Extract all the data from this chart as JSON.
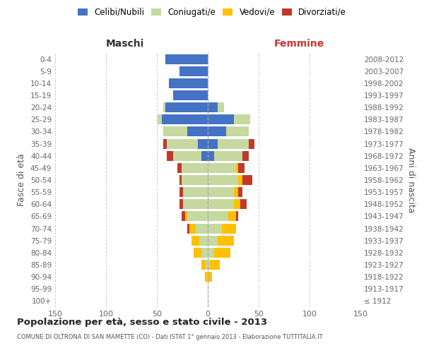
{
  "age_groups": [
    "100+",
    "95-99",
    "90-94",
    "85-89",
    "80-84",
    "75-79",
    "70-74",
    "65-69",
    "60-64",
    "55-59",
    "50-54",
    "45-49",
    "40-44",
    "35-39",
    "30-34",
    "25-29",
    "20-24",
    "15-19",
    "10-14",
    "5-9",
    "0-4"
  ],
  "birth_years": [
    "≤ 1912",
    "1913-1917",
    "1918-1922",
    "1923-1927",
    "1928-1932",
    "1933-1937",
    "1938-1942",
    "1943-1947",
    "1948-1952",
    "1953-1957",
    "1958-1962",
    "1963-1967",
    "1968-1972",
    "1973-1977",
    "1978-1982",
    "1983-1987",
    "1988-1992",
    "1993-1997",
    "1998-2002",
    "2003-2007",
    "2008-2012"
  ],
  "male_celibi": [
    0,
    0,
    0,
    0,
    0,
    0,
    0,
    0,
    0,
    0,
    0,
    0,
    6,
    10,
    20,
    45,
    42,
    34,
    38,
    28,
    42
  ],
  "male_coniugati": [
    0,
    0,
    1,
    2,
    6,
    8,
    12,
    20,
    24,
    24,
    26,
    26,
    28,
    30,
    24,
    4,
    2,
    0,
    0,
    0,
    0
  ],
  "male_vedovi": [
    0,
    0,
    2,
    4,
    8,
    8,
    6,
    2,
    0,
    0,
    0,
    0,
    0,
    0,
    0,
    0,
    0,
    0,
    0,
    0,
    0
  ],
  "male_divorziati": [
    0,
    0,
    0,
    0,
    0,
    0,
    2,
    4,
    4,
    4,
    2,
    4,
    6,
    4,
    0,
    0,
    0,
    0,
    0,
    0,
    0
  ],
  "female_nubili": [
    0,
    0,
    0,
    0,
    0,
    0,
    0,
    0,
    0,
    0,
    0,
    0,
    6,
    10,
    18,
    26,
    10,
    0,
    0,
    0,
    0
  ],
  "female_coniugate": [
    0,
    0,
    0,
    2,
    6,
    10,
    14,
    20,
    26,
    26,
    30,
    28,
    28,
    30,
    22,
    16,
    6,
    0,
    0,
    0,
    0
  ],
  "female_vedove": [
    0,
    0,
    4,
    10,
    16,
    16,
    14,
    8,
    6,
    4,
    4,
    2,
    0,
    0,
    0,
    0,
    0,
    0,
    0,
    0,
    0
  ],
  "female_divorziate": [
    0,
    0,
    0,
    0,
    0,
    0,
    0,
    2,
    6,
    4,
    10,
    6,
    6,
    6,
    0,
    0,
    0,
    0,
    0,
    0,
    0
  ],
  "color_celibi": "#4472c4",
  "color_coniugati": "#c5d9a0",
  "color_vedovi": "#ffc000",
  "color_divorziati": "#c0392b",
  "xlim": 150,
  "title": "Popolazione per età, sesso e stato civile - 2013",
  "subtitle": "COMUNE DI OLTRONA DI SAN MAMETTE (CO) - Dati ISTAT 1° gennaio 2013 - Elaborazione TUTTITALIA.IT",
  "ylabel": "Fasce di età",
  "ylabel_right": "Anni di nascita",
  "xlabel_left": "Maschi",
  "xlabel_right": "Femmine",
  "bg_color": "#ffffff",
  "grid_color": "#cccccc"
}
